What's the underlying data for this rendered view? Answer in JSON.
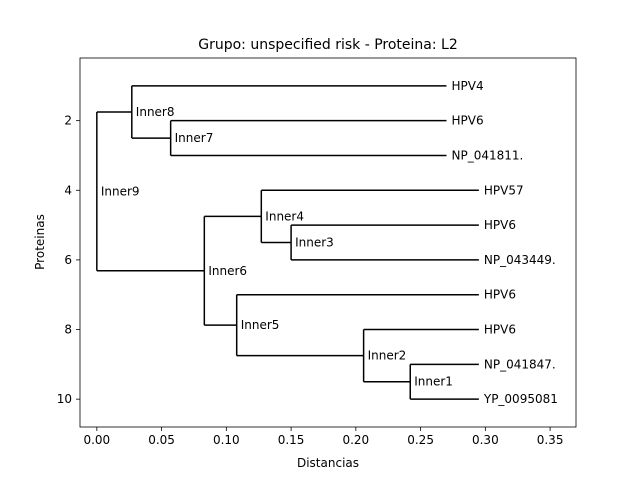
{
  "chart_data": {
    "type": "dendrogram",
    "title": "Grupo: unspecified risk - Proteina: L2",
    "xlabel": "Distancias",
    "ylabel": "Proteinas",
    "xlim": [
      -0.013,
      0.37
    ],
    "ylim": [
      10.8,
      0.2
    ],
    "x_ticks": [
      0.0,
      0.05,
      0.1,
      0.15,
      0.2,
      0.25,
      0.3,
      0.35
    ],
    "x_tick_labels": [
      "0.00",
      "0.05",
      "0.10",
      "0.15",
      "0.20",
      "0.25",
      "0.30",
      "0.35"
    ],
    "y_ticks": [
      2,
      4,
      6,
      8,
      10
    ],
    "y_tick_labels": [
      "2",
      "4",
      "6",
      "8",
      "10"
    ],
    "leaves": [
      {
        "id": "L1",
        "label": "HPV4",
        "x": 0.27,
        "y": 1
      },
      {
        "id": "L2",
        "label": "HPV6",
        "x": 0.27,
        "y": 2
      },
      {
        "id": "L3",
        "label": "NP_041811.",
        "x": 0.27,
        "y": 3
      },
      {
        "id": "L4",
        "label": "HPV57",
        "x": 0.295,
        "y": 4
      },
      {
        "id": "L5",
        "label": "HPV6",
        "x": 0.295,
        "y": 5
      },
      {
        "id": "L6",
        "label": "NP_043449.",
        "x": 0.295,
        "y": 6
      },
      {
        "id": "L7",
        "label": "HPV6",
        "x": 0.295,
        "y": 7
      },
      {
        "id": "L8",
        "label": "HPV6",
        "x": 0.295,
        "y": 8
      },
      {
        "id": "L9",
        "label": "NP_041847.",
        "x": 0.295,
        "y": 9
      },
      {
        "id": "L10",
        "label": "YP_0095081",
        "x": 0.295,
        "y": 10
      }
    ],
    "inner_nodes": [
      {
        "id": "Inner1",
        "label": "Inner1",
        "x": 0.242,
        "children": [
          "L9",
          "L10"
        ]
      },
      {
        "id": "Inner2",
        "label": "Inner2",
        "x": 0.206,
        "children": [
          "L8",
          "Inner1"
        ]
      },
      {
        "id": "Inner3",
        "label": "Inner3",
        "x": 0.15,
        "children": [
          "L5",
          "L6"
        ]
      },
      {
        "id": "Inner4",
        "label": "Inner4",
        "x": 0.127,
        "children": [
          "L4",
          "Inner3"
        ]
      },
      {
        "id": "Inner5",
        "label": "Inner5",
        "x": 0.108,
        "children": [
          "L7",
          "Inner2"
        ]
      },
      {
        "id": "Inner6",
        "label": "Inner6",
        "x": 0.083,
        "children": [
          "Inner4",
          "Inner5"
        ]
      },
      {
        "id": "Inner7",
        "label": "Inner7",
        "x": 0.057,
        "children": [
          "L2",
          "L3"
        ]
      },
      {
        "id": "Inner8",
        "label": "Inner8",
        "x": 0.027,
        "children": [
          "L1",
          "Inner7"
        ]
      },
      {
        "id": "Inner9",
        "label": "Inner9",
        "x": 0.0,
        "children": [
          "Inner8",
          "Inner6"
        ]
      }
    ]
  }
}
